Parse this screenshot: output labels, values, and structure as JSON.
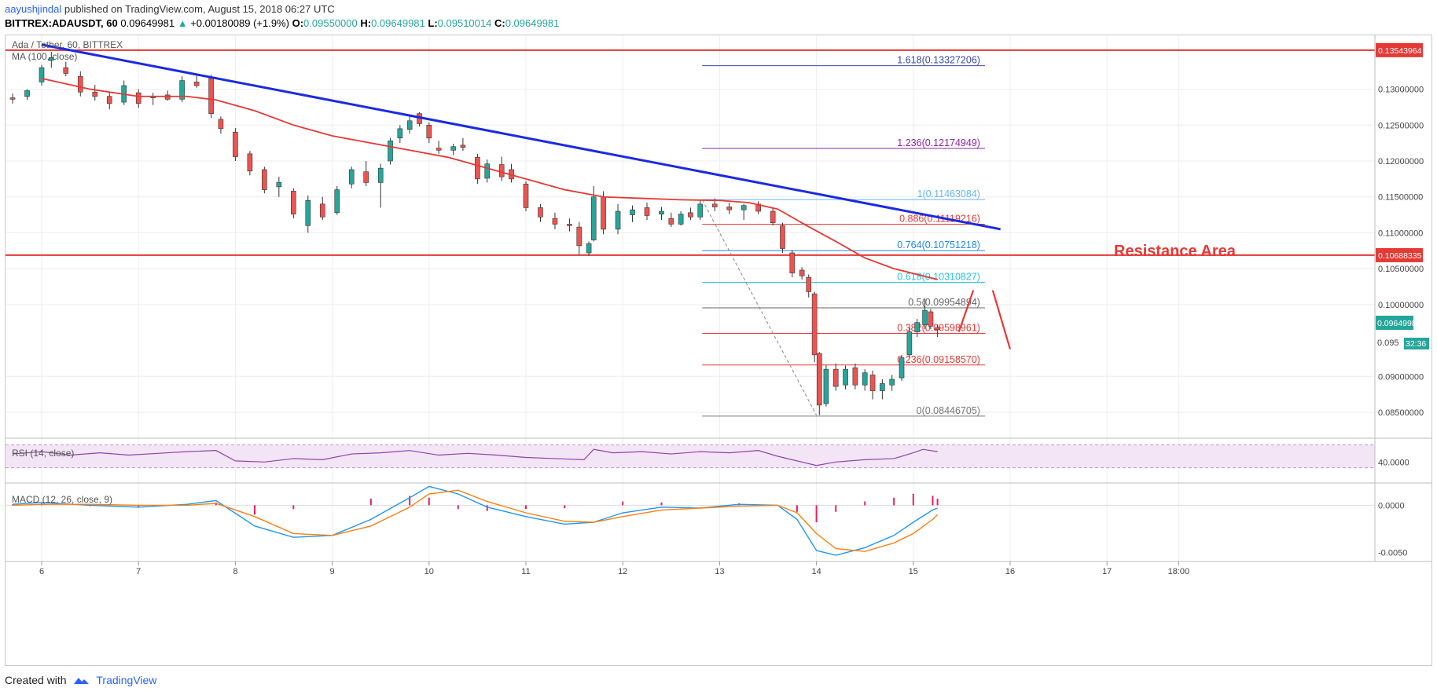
{
  "header": {
    "author": "aayushjindal",
    "published": " published on TradingView.com, August 15, 2018 06:27 UTC",
    "symbol": "BITTREX:ADAUSDT, 60",
    "price": "0.09649981",
    "change_arrow": "▲",
    "change": "+0.00180089 (+1.9%)",
    "o_label": "O:",
    "o_val": "0.09550000",
    "h_label": "H:",
    "h_val": "0.09649981",
    "l_label": "L:",
    "l_val": "0.09510014",
    "c_label": "C:",
    "c_val": "0.09649981"
  },
  "chart_title": "Ada / Tether, 60, BITTREX",
  "ma_label": "MA (100, close)",
  "rsi_label": "RSI (14, close)",
  "macd_label": "MACD (12, 26, close, 9)",
  "annotation": "Resistance Area",
  "price_tag": "0.09649981",
  "countdown": "32:36",
  "price_axis_partial": "0.095",
  "footer": {
    "created_with": "Created with",
    "brand": "TradingView"
  },
  "colors": {
    "up": "#26a69a",
    "down": "#ef5350",
    "ma": "#e53935",
    "trendline": "#1a2be0",
    "horizontal": "#e53935",
    "rsi": "#8e44ad",
    "macd": "#2196f3",
    "signal": "#ff7f0e",
    "hist": "#e91e63"
  },
  "chart_data": [
    {
      "type": "candlestick",
      "title": "Ada / Tether, 60, BITTREX",
      "x_ticks": [
        "6",
        "7",
        "8",
        "9",
        "10",
        "11",
        "12",
        "13",
        "14",
        "15",
        "16",
        "17",
        "18:00"
      ],
      "y_ticks": [
        "0.13000000",
        "0.12500000",
        "0.12000000",
        "0.11500000",
        "0.11000000",
        "0.10500000",
        "0.10000000",
        "0.09000000",
        "0.08500000"
      ],
      "ylim": [
        0.0815,
        0.1375
      ],
      "key_levels": [
        {
          "label": "0.13543964",
          "value": 0.13543964
        },
        {
          "label": "0.10688335",
          "value": 0.10688335
        }
      ],
      "fibonacci": [
        {
          "label": "1.618(0.13327206)",
          "value": 0.13327206,
          "color": "#3949ab"
        },
        {
          "label": "1.236(0.12174949)",
          "value": 0.12174949,
          "color": "#8e24aa"
        },
        {
          "label": "1(0.11463084)",
          "value": 0.11463084,
          "color": "#64b5f6"
        },
        {
          "label": "0.886(0.11119216)",
          "value": 0.11119216,
          "color": "#e53935"
        },
        {
          "label": "0.764(0.10751218)",
          "value": 0.10751218,
          "color": "#1e88e5"
        },
        {
          "label": "0.618(0.10310827)",
          "value": 0.10310827,
          "color": "#26c6da"
        },
        {
          "label": "0.5(0.09954894)",
          "value": 0.09954894,
          "color": "#666666"
        },
        {
          "label": "0.382(0.09598961)",
          "value": 0.09598961,
          "color": "#e53935"
        },
        {
          "label": "0.236(0.09158570)",
          "value": 0.0915857,
          "color": "#e53935"
        },
        {
          "label": "0(0.08446705)",
          "value": 0.08446705,
          "color": "#777777"
        }
      ],
      "ma_path": [
        [
          6.0,
          0.1315
        ],
        [
          6.5,
          0.13
        ],
        [
          7.0,
          0.129
        ],
        [
          7.5,
          0.129
        ],
        [
          7.8,
          0.1285
        ],
        [
          8.2,
          0.127
        ],
        [
          8.6,
          0.125
        ],
        [
          9.0,
          0.1235
        ],
        [
          9.4,
          0.1225
        ],
        [
          9.8,
          0.1215
        ],
        [
          10.2,
          0.1205
        ],
        [
          10.6,
          0.119
        ],
        [
          11.0,
          0.1175
        ],
        [
          11.4,
          0.116
        ],
        [
          11.8,
          0.115
        ],
        [
          12.2,
          0.1148
        ],
        [
          12.6,
          0.1146
        ],
        [
          13.0,
          0.1145
        ],
        [
          13.3,
          0.1142
        ],
        [
          13.6,
          0.1133
        ],
        [
          13.9,
          0.111
        ],
        [
          14.2,
          0.1088
        ],
        [
          14.5,
          0.1065
        ],
        [
          14.8,
          0.105
        ],
        [
          15.1,
          0.104
        ],
        [
          15.25,
          0.1035
        ]
      ],
      "trendline": [
        [
          6.0,
          0.1362
        ],
        [
          15.9,
          0.1105
        ]
      ],
      "fib_swing": [
        [
          12.82,
          0.1146
        ],
        [
          14.0,
          0.0846
        ]
      ],
      "forecast_arrows": [
        [
          [
            15.47,
            0.0962
          ],
          [
            15.62,
            0.102
          ]
        ],
        [
          [
            15.82,
            0.102
          ],
          [
            16.0,
            0.0938
          ]
        ]
      ],
      "candles": [
        [
          5.7,
          0.1288,
          0.1294,
          0.128,
          0.1286
        ],
        [
          5.85,
          0.129,
          0.13,
          0.1285,
          0.1298
        ],
        [
          6.0,
          0.131,
          0.1334,
          0.1305,
          0.133
        ],
        [
          6.1,
          0.134,
          0.1352,
          0.133,
          0.1344
        ],
        [
          6.25,
          0.133,
          0.1338,
          0.1318,
          0.1322
        ],
        [
          6.4,
          0.1318,
          0.1325,
          0.129,
          0.1296
        ],
        [
          6.55,
          0.1296,
          0.1306,
          0.1284,
          0.129
        ],
        [
          6.7,
          0.129,
          0.1296,
          0.1272,
          0.128
        ],
        [
          6.85,
          0.1282,
          0.1312,
          0.1278,
          0.1305
        ],
        [
          7.0,
          0.1295,
          0.13,
          0.1274,
          0.128
        ],
        [
          7.15,
          0.1288,
          0.1295,
          0.1278,
          0.129
        ],
        [
          7.3,
          0.1292,
          0.1298,
          0.1284,
          0.1286
        ],
        [
          7.45,
          0.1286,
          0.1318,
          0.1282,
          0.1312
        ],
        [
          7.6,
          0.131,
          0.1322,
          0.1302,
          0.1305
        ],
        [
          7.75,
          0.1315,
          0.132,
          0.126,
          0.1266
        ],
        [
          7.85,
          0.1258,
          0.1262,
          0.1238,
          0.1245
        ],
        [
          8.0,
          0.124,
          0.1246,
          0.12,
          0.1206
        ],
        [
          8.15,
          0.121,
          0.1214,
          0.118,
          0.1186
        ],
        [
          8.3,
          0.1188,
          0.1192,
          0.1155,
          0.116
        ],
        [
          8.45,
          0.1164,
          0.1178,
          0.115,
          0.117
        ],
        [
          8.6,
          0.1158,
          0.1162,
          0.112,
          0.1126
        ],
        [
          8.75,
          0.111,
          0.1152,
          0.11,
          0.1145
        ],
        [
          8.9,
          0.114,
          0.115,
          0.1118,
          0.1122
        ],
        [
          9.05,
          0.1128,
          0.1165,
          0.1125,
          0.116
        ],
        [
          9.2,
          0.1168,
          0.1192,
          0.1162,
          0.1188
        ],
        [
          9.35,
          0.1185,
          0.12,
          0.1165,
          0.117
        ],
        [
          9.5,
          0.117,
          0.1196,
          0.1135,
          0.119
        ],
        [
          9.6,
          0.12,
          0.1232,
          0.1195,
          0.1228
        ],
        [
          9.7,
          0.1232,
          0.125,
          0.1225,
          0.1245
        ],
        [
          9.8,
          0.1244,
          0.1262,
          0.1238,
          0.1256
        ],
        [
          9.9,
          0.1266,
          0.1268,
          0.1248,
          0.1252
        ],
        [
          10.0,
          0.125,
          0.1254,
          0.1225,
          0.1232
        ],
        [
          10.1,
          0.1218,
          0.1228,
          0.121,
          0.1215
        ],
        [
          10.25,
          0.1215,
          0.1224,
          0.1208,
          0.122
        ],
        [
          10.35,
          0.1222,
          0.1232,
          0.1214,
          0.1219
        ],
        [
          10.5,
          0.1205,
          0.121,
          0.1168,
          0.1175
        ],
        [
          10.6,
          0.1176,
          0.1202,
          0.117,
          0.1196
        ],
        [
          10.75,
          0.1195,
          0.1206,
          0.1172,
          0.1178
        ],
        [
          10.85,
          0.1188,
          0.1196,
          0.117,
          0.1175
        ],
        [
          11.0,
          0.1168,
          0.1172,
          0.113,
          0.1135
        ],
        [
          11.15,
          0.1135,
          0.114,
          0.1115,
          0.1122
        ],
        [
          11.3,
          0.112,
          0.1128,
          0.1105,
          0.1112
        ],
        [
          11.45,
          0.1112,
          0.112,
          0.1102,
          0.111
        ],
        [
          11.55,
          0.1108,
          0.1115,
          0.107,
          0.1082
        ],
        [
          11.65,
          0.1072,
          0.1088,
          0.1068,
          0.1085
        ],
        [
          11.7,
          0.109,
          0.1165,
          0.1088,
          0.115
        ],
        [
          11.8,
          0.115,
          0.1158,
          0.1098,
          0.1105
        ],
        [
          11.95,
          0.1105,
          0.114,
          0.1098,
          0.113
        ],
        [
          12.1,
          0.1125,
          0.1138,
          0.1115,
          0.1132
        ],
        [
          12.25,
          0.1135,
          0.1142,
          0.1118,
          0.1124
        ],
        [
          12.4,
          0.1126,
          0.1136,
          0.1118,
          0.113
        ],
        [
          12.5,
          0.112,
          0.1128,
          0.1108,
          0.1112
        ],
        [
          12.6,
          0.1112,
          0.113,
          0.111,
          0.1126
        ],
        [
          12.7,
          0.1128,
          0.1135,
          0.1118,
          0.1122
        ],
        [
          12.8,
          0.1122,
          0.1146,
          0.1118,
          0.114
        ],
        [
          12.95,
          0.114,
          0.1148,
          0.113,
          0.1136
        ],
        [
          13.1,
          0.1136,
          0.1142,
          0.1126,
          0.1132
        ],
        [
          13.25,
          0.1132,
          0.114,
          0.1118,
          0.1138
        ],
        [
          13.4,
          0.114,
          0.1144,
          0.1126,
          0.113
        ],
        [
          13.55,
          0.113,
          0.1134,
          0.111,
          0.1114
        ],
        [
          13.65,
          0.111,
          0.1114,
          0.1072,
          0.1078
        ],
        [
          13.75,
          0.1072,
          0.1076,
          0.1038,
          0.1044
        ],
        [
          13.85,
          0.1048,
          0.1052,
          0.1035,
          0.104
        ],
        [
          13.92,
          0.1038,
          0.1042,
          0.101,
          0.1018
        ],
        [
          13.98,
          0.1015,
          0.1018,
          0.092,
          0.093
        ],
        [
          14.03,
          0.0932,
          0.0934,
          0.0846,
          0.086
        ],
        [
          14.1,
          0.0862,
          0.0916,
          0.0858,
          0.091
        ],
        [
          14.2,
          0.091,
          0.0918,
          0.088,
          0.0886
        ],
        [
          14.3,
          0.0888,
          0.0915,
          0.0882,
          0.091
        ],
        [
          14.4,
          0.0912,
          0.0918,
          0.0882,
          0.0888
        ],
        [
          14.5,
          0.0888,
          0.091,
          0.088,
          0.0905
        ],
        [
          14.58,
          0.0902,
          0.0908,
          0.0868,
          0.088
        ],
        [
          14.68,
          0.088,
          0.0896,
          0.0868,
          0.089
        ],
        [
          14.78,
          0.0888,
          0.0902,
          0.088,
          0.0896
        ],
        [
          14.88,
          0.0898,
          0.093,
          0.0894,
          0.0926
        ],
        [
          14.96,
          0.093,
          0.0968,
          0.0926,
          0.0962
        ],
        [
          15.04,
          0.0962,
          0.098,
          0.0955,
          0.0975
        ],
        [
          15.12,
          0.0972,
          0.1008,
          0.0966,
          0.0992
        ],
        [
          15.18,
          0.099,
          0.0994,
          0.0966,
          0.097
        ],
        [
          15.25,
          0.0968,
          0.0972,
          0.0955,
          0.0965
        ]
      ]
    },
    {
      "type": "line",
      "title": "RSI (14, close)",
      "y_ticks": [
        "40.0000"
      ],
      "ylim": [
        20,
        80
      ],
      "bands": [
        30,
        70
      ],
      "x": [
        5.7,
        6.0,
        6.3,
        6.6,
        6.9,
        7.2,
        7.5,
        7.8,
        8.0,
        8.3,
        8.6,
        8.9,
        9.2,
        9.5,
        9.8,
        10.1,
        10.4,
        10.7,
        11.0,
        11.3,
        11.6,
        11.7,
        11.9,
        12.2,
        12.5,
        12.8,
        13.1,
        13.4,
        13.6,
        13.8,
        14.0,
        14.2,
        14.5,
        14.8,
        15.0,
        15.1,
        15.25
      ],
      "values": [
        54,
        58,
        52,
        56,
        52,
        55,
        58,
        60,
        42,
        40,
        46,
        44,
        54,
        56,
        60,
        52,
        55,
        52,
        48,
        46,
        44,
        62,
        56,
        58,
        54,
        58,
        56,
        60,
        50,
        42,
        34,
        40,
        44,
        46,
        56,
        62,
        58
      ]
    },
    {
      "type": "line",
      "title": "MACD (12, 26, close, 9)",
      "y_ticks": [
        "0.0000",
        "-0.0050"
      ],
      "ylim": [
        -0.0058,
        0.0022
      ],
      "series": [
        {
          "name": "MACD",
          "x": [
            5.7,
            6.0,
            6.5,
            7.0,
            7.5,
            7.8,
            8.2,
            8.6,
            9.0,
            9.4,
            9.8,
            10.0,
            10.3,
            10.6,
            11.0,
            11.4,
            11.7,
            12.0,
            12.4,
            12.8,
            13.2,
            13.6,
            13.8,
            14.0,
            14.2,
            14.5,
            14.8,
            15.0,
            15.2,
            15.25
          ],
          "values": [
            0.0001,
            0.0003,
            0.0,
            -0.0002,
            0.0001,
            0.0005,
            -0.0022,
            -0.0034,
            -0.0032,
            -0.0015,
            0.0008,
            0.002,
            0.0012,
            -0.0002,
            -0.0012,
            -0.002,
            -0.0018,
            -0.0008,
            -0.0002,
            -0.0003,
            0.0001,
            0.0,
            -0.0015,
            -0.0048,
            -0.0053,
            -0.0045,
            -0.0032,
            -0.0018,
            -0.0005,
            -0.0003
          ]
        },
        {
          "name": "Signal",
          "x": [
            5.7,
            6.0,
            6.5,
            7.0,
            7.5,
            7.8,
            8.2,
            8.6,
            9.0,
            9.4,
            9.8,
            10.0,
            10.3,
            10.6,
            11.0,
            11.4,
            11.7,
            12.0,
            12.4,
            12.8,
            13.2,
            13.6,
            13.8,
            14.0,
            14.2,
            14.5,
            14.8,
            15.0,
            15.2,
            15.25
          ],
          "values": [
            0.0,
            0.0001,
            0.0001,
            0.0,
            0.0,
            0.0002,
            -0.0012,
            -0.003,
            -0.0032,
            -0.0022,
            -0.0002,
            0.0012,
            0.0016,
            0.0004,
            -0.0008,
            -0.0017,
            -0.0018,
            -0.0012,
            -0.0005,
            -0.0003,
            -0.0001,
            0.0,
            -0.0008,
            -0.003,
            -0.0046,
            -0.0049,
            -0.004,
            -0.003,
            -0.0015,
            -0.001
          ]
        }
      ],
      "histogram": {
        "x": [
          5.7,
          6.0,
          6.5,
          7.0,
          7.5,
          7.8,
          8.2,
          8.6,
          9.0,
          9.4,
          9.8,
          10.0,
          10.3,
          10.6,
          11.0,
          11.4,
          11.7,
          12.0,
          12.4,
          12.8,
          13.2,
          13.6,
          13.8,
          14.0,
          14.2,
          14.5,
          14.8,
          15.0,
          15.2,
          15.25
        ],
        "values": [
          0.0001,
          0.0002,
          -0.0001,
          -0.0002,
          0.0001,
          0.0003,
          -0.001,
          -0.0004,
          0.0,
          0.0007,
          0.001,
          0.0008,
          -0.0004,
          -0.0006,
          -0.0004,
          -0.0003,
          0.0,
          0.0004,
          0.0003,
          0.0,
          0.0002,
          0.0,
          -0.0007,
          -0.0018,
          -0.0007,
          0.0004,
          0.0008,
          0.0012,
          0.001,
          0.0007
        ]
      }
    }
  ]
}
